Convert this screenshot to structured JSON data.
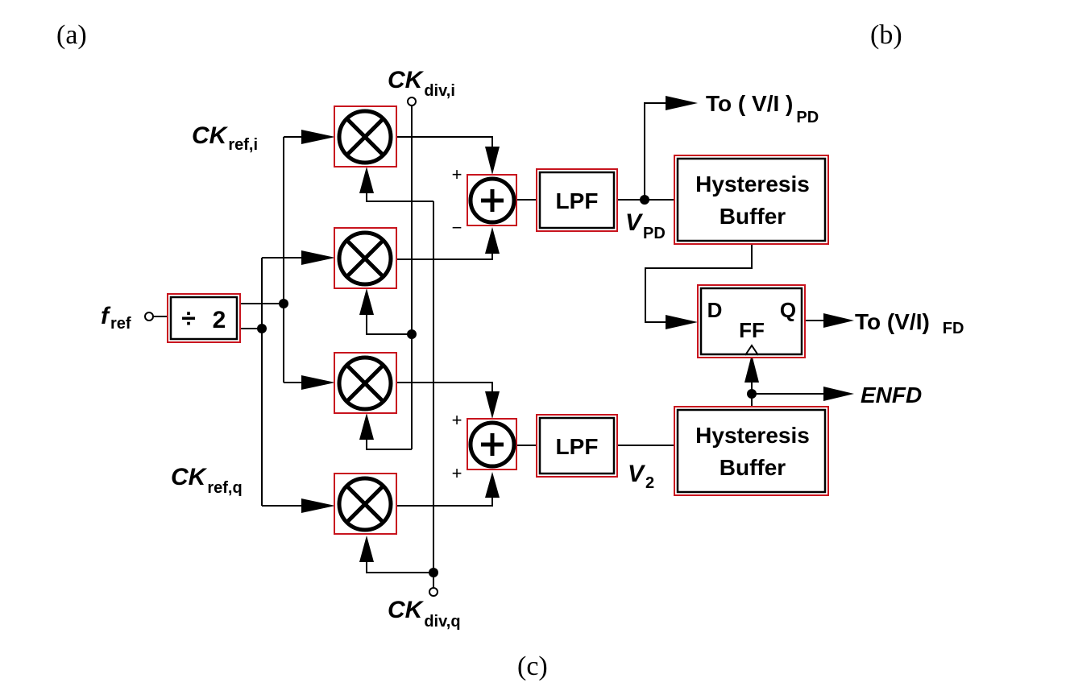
{
  "captions": {
    "a": "(a)",
    "b": "(b)",
    "c": "(c)"
  },
  "signals": {
    "f_ref": {
      "base": "f",
      "sub": "ref"
    },
    "ck_ref_i": {
      "base": "CK",
      "sub": "ref,i"
    },
    "ck_ref_q": {
      "base": "CK",
      "sub": "ref,q"
    },
    "ck_div_i": {
      "base": "CK",
      "sub": "div,i"
    },
    "ck_div_q": {
      "base": "CK",
      "sub": "div,q"
    },
    "v_pd": {
      "base": "V",
      "sub": "PD"
    },
    "v_2": {
      "base": "V",
      "sub": "2"
    },
    "enfd": "ENFD"
  },
  "blocks": {
    "divider": {
      "symbol": "÷",
      "value": "2"
    },
    "lpf_top": "LPF",
    "lpf_bottom": "LPF",
    "hyst_top": {
      "line1": "Hysteresis",
      "line2": "Buffer"
    },
    "hyst_bottom": {
      "line1": "Hysteresis",
      "line2": "Buffer"
    },
    "ff": {
      "d": "D",
      "q": "Q",
      "name": "FF"
    }
  },
  "signs": {
    "sum_top_plus": "+",
    "sum_top_minus": "−",
    "sum_bottom_plus_top": "+",
    "sum_bottom_plus_bottom": "+"
  },
  "outputs": {
    "to_pd": {
      "base": "To ( V/I )",
      "sub": "PD"
    },
    "to_fd": {
      "base": "To (V/I)",
      "sub": "FD"
    }
  },
  "colors": {
    "block_outline": "#c8141e",
    "line": "#000000"
  }
}
